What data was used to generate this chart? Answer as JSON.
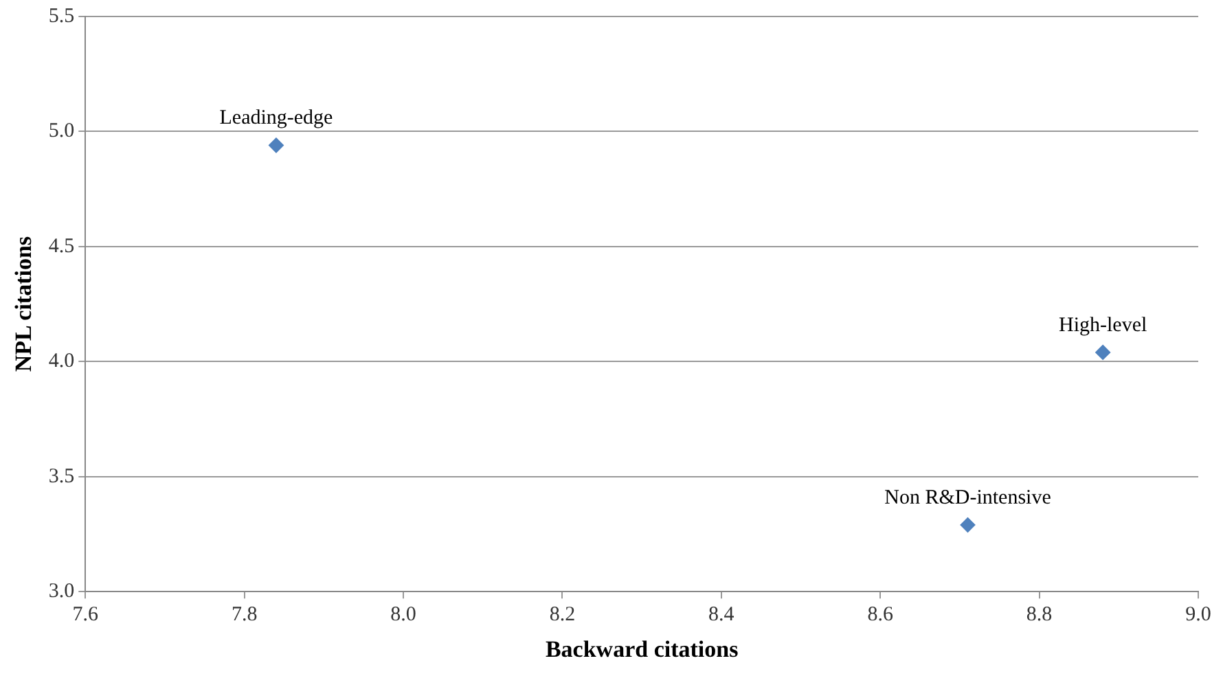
{
  "chart_data": {
    "type": "scatter",
    "xlabel": "Backward citations",
    "ylabel": "NPL citations",
    "xlim": [
      7.6,
      9.0
    ],
    "xticks": [
      {
        "value": 7.6,
        "label": "7.6"
      },
      {
        "value": 7.8,
        "label": "7.8"
      },
      {
        "value": 8.0,
        "label": "8.0"
      },
      {
        "value": 8.2,
        "label": "8.2"
      },
      {
        "value": 8.4,
        "label": "8.4"
      },
      {
        "value": 8.6,
        "label": "8.6"
      },
      {
        "value": 8.8,
        "label": "8.8"
      },
      {
        "value": 9.0,
        "label": "9.0"
      }
    ],
    "ylim": [
      3.0,
      5.5
    ],
    "yticks": [
      {
        "value": 3.0,
        "label": "3.0"
      },
      {
        "value": 3.5,
        "label": "3.5"
      },
      {
        "value": 4.0,
        "label": "4.0"
      },
      {
        "value": 4.5,
        "label": "4.5"
      },
      {
        "value": 5.0,
        "label": "5.0"
      },
      {
        "value": 5.5,
        "label": "5.5"
      }
    ],
    "grid": "y",
    "legend": false,
    "marker": "diamond",
    "series": [
      {
        "name": "Leading-edge",
        "color": "#4f81bd",
        "x": [
          7.84
        ],
        "values": [
          4.94
        ]
      },
      {
        "name": "High-level",
        "color": "#4f81bd",
        "x": [
          8.88
        ],
        "values": [
          4.04
        ]
      },
      {
        "name": "Non R&D-intensive",
        "color": "#4f81bd",
        "x": [
          8.71
        ],
        "values": [
          3.29
        ]
      }
    ]
  }
}
